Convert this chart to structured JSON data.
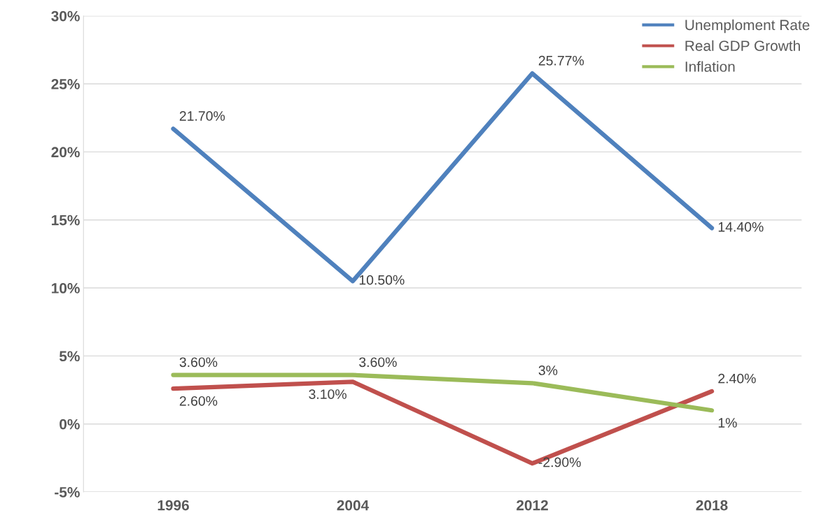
{
  "chart_data": {
    "type": "line",
    "categories": [
      "1996",
      "2004",
      "2012",
      "2018"
    ],
    "series": [
      {
        "name": "Unemploment Rate",
        "color": "#4f81bd",
        "values": [
          21.7,
          10.5,
          25.77,
          14.4
        ],
        "value_labels": [
          "21.70%",
          "10.50%",
          "25.77%",
          "14.40%"
        ]
      },
      {
        "name": "Real GDP Growth",
        "color": "#c0504d",
        "values": [
          2.6,
          3.1,
          -2.9,
          2.4
        ],
        "value_labels": [
          "2.60%",
          "3.10%",
          "-2.90%",
          "2.40%"
        ]
      },
      {
        "name": "Inflation",
        "color": "#9bbb59",
        "values": [
          3.6,
          3.6,
          3,
          1
        ],
        "value_labels": [
          "3.60%",
          "3.60%",
          "3%",
          "1%"
        ]
      }
    ],
    "ylim": [
      -5,
      30
    ],
    "yticks": [
      {
        "value": -5,
        "label": "-5%"
      },
      {
        "value": 0,
        "label": "0%"
      },
      {
        "value": 5,
        "label": "5%"
      },
      {
        "value": 10,
        "label": "10%"
      },
      {
        "value": 15,
        "label": "15%"
      },
      {
        "value": 20,
        "label": "20%"
      },
      {
        "value": 25,
        "label": "25%"
      },
      {
        "value": 30,
        "label": "30%"
      }
    ],
    "grid": "y",
    "legend": "top right",
    "marker": "none",
    "line_style": "solid"
  }
}
